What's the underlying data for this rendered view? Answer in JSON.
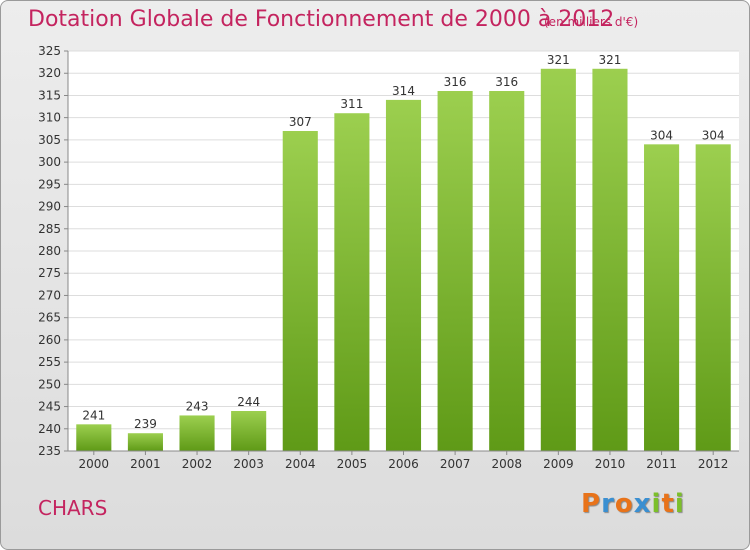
{
  "header": {
    "title": "Dotation Globale de Fonctionnement de 2000 à 2012",
    "unit": "(en milliers d'€)"
  },
  "footer": {
    "commune": "CHARS",
    "brand": "Proxiti",
    "brand_colors": [
      "#e8731a",
      "#3a8fd1",
      "#e8731a",
      "#3a8fd1",
      "#7cbf2a",
      "#e8731a",
      "#7cbf2a"
    ]
  },
  "colors": {
    "bar_light": "#9ccf4f",
    "bar_dark": "#5f9a17",
    "accent": "#c4245f"
  },
  "chart_data": {
    "type": "bar",
    "categories": [
      "2000",
      "2001",
      "2002",
      "2003",
      "2004",
      "2005",
      "2006",
      "2007",
      "2008",
      "2009",
      "2010",
      "2011",
      "2012"
    ],
    "values": [
      241,
      239,
      243,
      244,
      307,
      311,
      314,
      316,
      316,
      321,
      321,
      304,
      304
    ],
    "yticks": [
      235,
      240,
      245,
      250,
      255,
      260,
      265,
      270,
      275,
      280,
      285,
      290,
      295,
      300,
      305,
      310,
      315,
      320,
      325
    ],
    "ylim": [
      235,
      325
    ],
    "grid": true
  }
}
